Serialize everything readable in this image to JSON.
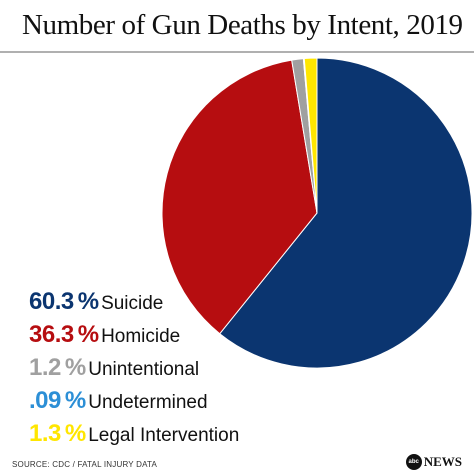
{
  "header": {
    "title": "Number of Gun Deaths by Intent, 2019"
  },
  "chart_data": {
    "type": "pie",
    "title": "Number of Gun Deaths by Intent, 2019",
    "slices": [
      {
        "label": "Suicide",
        "value": 60.3,
        "value_label": "60.3",
        "color": "#0b3570"
      },
      {
        "label": "Homicide",
        "value": 36.3,
        "value_label": "36.3",
        "color": "#b60d10"
      },
      {
        "label": "Unintentional",
        "value": 1.2,
        "value_label": "1.2",
        "color": "#a0a0a0"
      },
      {
        "label": "Undetermined",
        "value": 0.09,
        "value_label": ".09",
        "color": "#2c8fd6"
      },
      {
        "label": "Legal Intervention",
        "value": 1.3,
        "value_label": "1.3",
        "color": "#ffe600"
      }
    ],
    "percent_symbol": "%",
    "legend_position": "bottom-left"
  },
  "footer": {
    "source": "SOURCE: CDC / FATAL INJURY DATA",
    "logo_ball": "abc",
    "logo_text": "NEWS"
  }
}
